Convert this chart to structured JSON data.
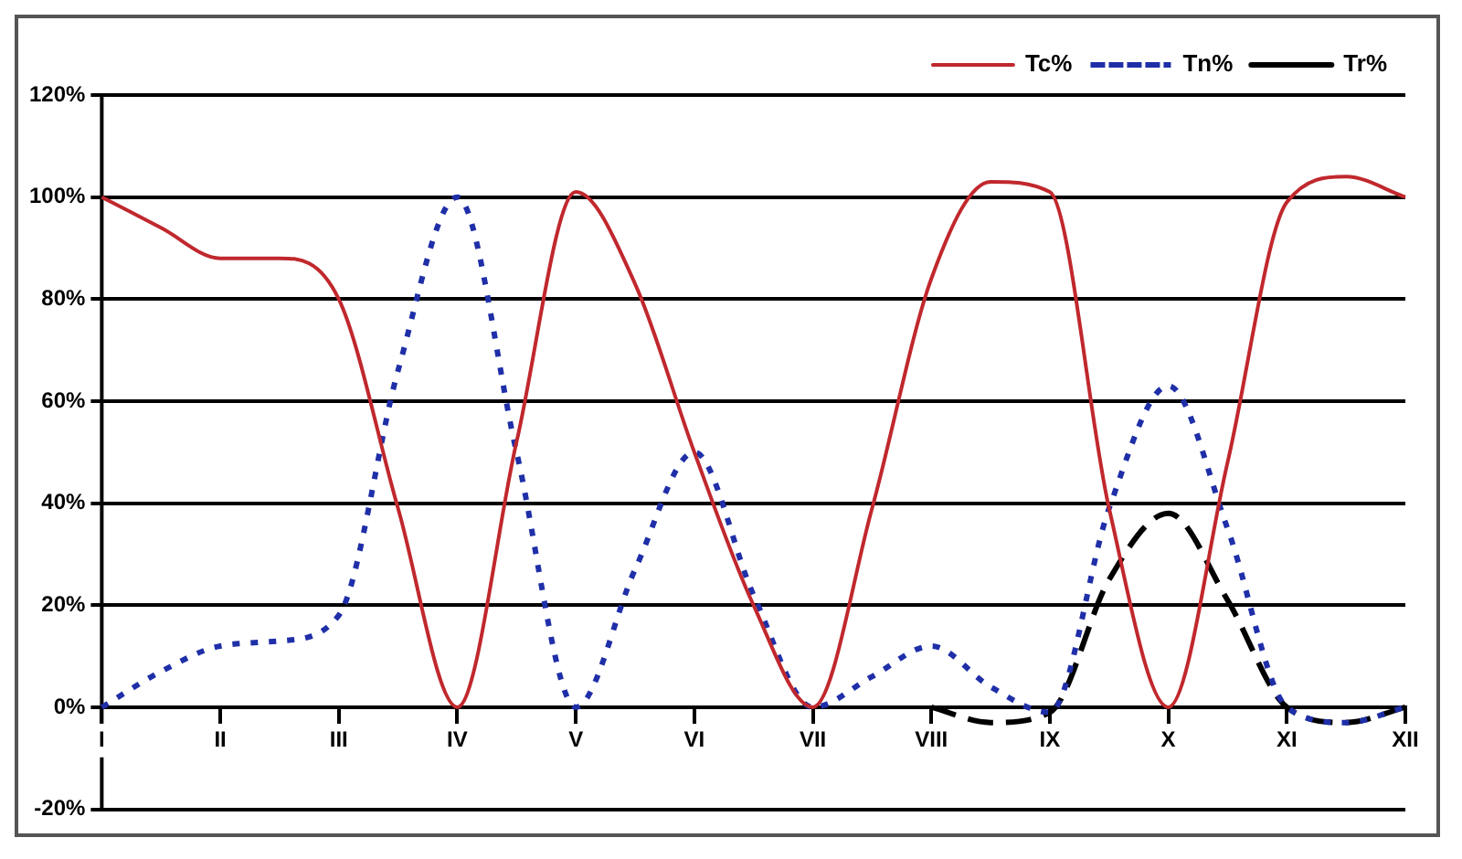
{
  "chart_data": {
    "type": "line",
    "categories": [
      "I",
      null,
      "II",
      null,
      "III",
      null,
      "IV",
      null,
      "V",
      null,
      "VI",
      null,
      "VII",
      null,
      "VIII",
      null,
      "IX",
      null,
      "X",
      null,
      "XI",
      null,
      "XII"
    ],
    "ylim": [
      -20,
      120
    ],
    "yticks": [
      {
        "value": -20,
        "label": "-20%"
      },
      {
        "value": 0,
        "label": "0%"
      },
      {
        "value": 20,
        "label": "20%"
      },
      {
        "value": 40,
        "label": "40%"
      },
      {
        "value": 60,
        "label": "60%"
      },
      {
        "value": 80,
        "label": "80%"
      },
      {
        "value": 100,
        "label": "100%"
      },
      {
        "value": 120,
        "label": "120%"
      }
    ],
    "grid": "y",
    "legend": "top right",
    "marker": "none",
    "series": [
      {
        "name": "Tc%",
        "color": "#c0282d",
        "line_style": "solid",
        "values": [
          100,
          94,
          88,
          88,
          80,
          39,
          0,
          52,
          101,
          83,
          50,
          20,
          0,
          39,
          84,
          103,
          101,
          39,
          0,
          48,
          99,
          104,
          100
        ]
      },
      {
        "name": "Tn%",
        "color": "#1f2fa8",
        "line_style": "dotted",
        "values": [
          0,
          7,
          12,
          13,
          18,
          66,
          100,
          50,
          0,
          27,
          50,
          22,
          0,
          6,
          12,
          4,
          -1,
          39,
          63,
          35,
          0,
          -3,
          0
        ]
      },
      {
        "name": "Tr%",
        "color": "#000000",
        "line_style": "dashed",
        "values": [
          null,
          null,
          null,
          null,
          null,
          null,
          null,
          null,
          null,
          null,
          null,
          null,
          null,
          null,
          0,
          -3,
          -1,
          25,
          38,
          21,
          0,
          -3,
          0
        ]
      }
    ]
  }
}
